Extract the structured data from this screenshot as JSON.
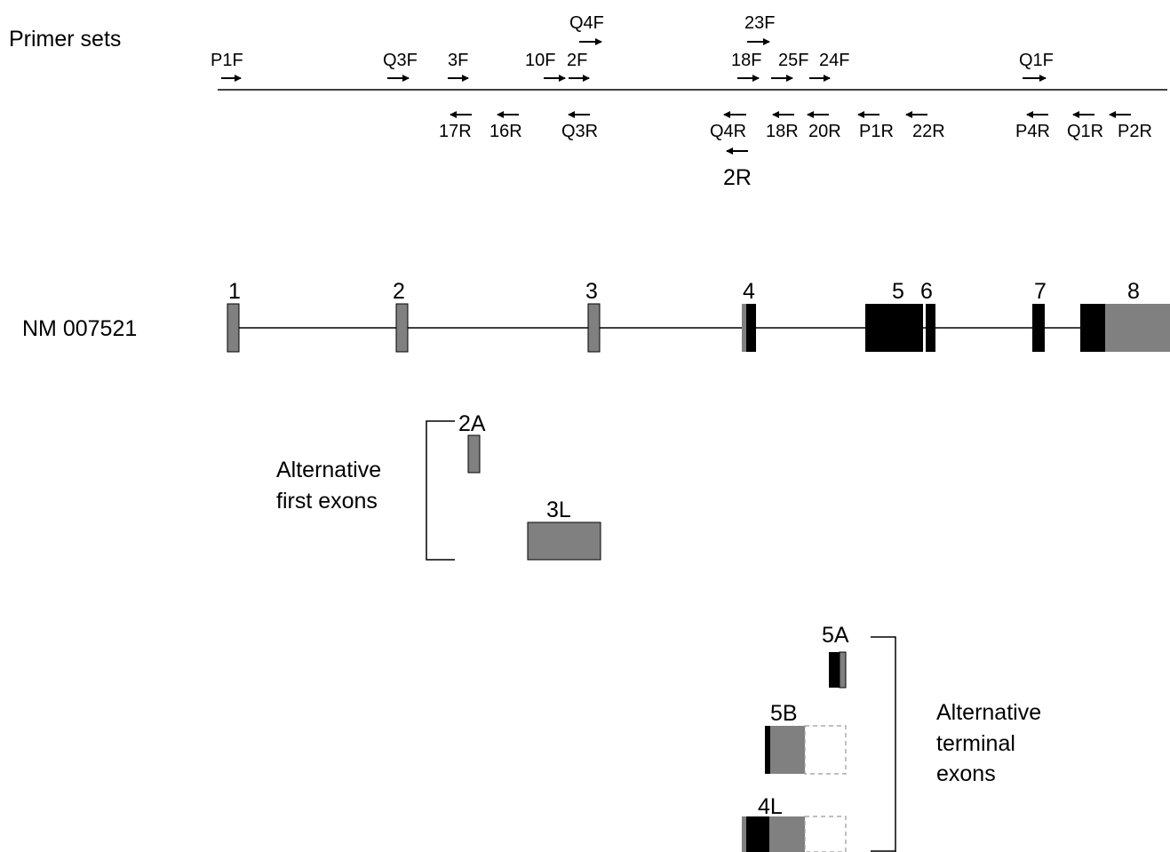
{
  "primers": {
    "title": "Primer sets",
    "forward": [
      "P1F",
      "Q3F",
      "3F",
      "10F",
      "2F",
      "Q4F",
      "23F",
      "18F",
      "25F",
      "24F",
      "Q1F"
    ],
    "reverse": [
      "17R",
      "16R",
      "Q3R",
      "Q4R",
      "2R",
      "18R",
      "20R",
      "P1R",
      "22R",
      "P4R",
      "Q1R",
      "P2R"
    ]
  },
  "gene": {
    "name": "NM 007521",
    "exons": [
      "1",
      "2",
      "3",
      "4",
      "5",
      "6",
      "7",
      "8"
    ]
  },
  "alt_first": {
    "label_line1": "Alternative",
    "label_line2": "first exons",
    "exons": [
      "2A",
      "3L"
    ]
  },
  "alt_terminal": {
    "label_line1": "Alternative",
    "label_line2": "terminal",
    "label_line3": "exons",
    "exons": [
      "5A",
      "5B",
      "4L"
    ]
  },
  "colors": {
    "coding": "#000000",
    "utr": "#808080",
    "line": "#000000",
    "dashed": "#999999"
  }
}
